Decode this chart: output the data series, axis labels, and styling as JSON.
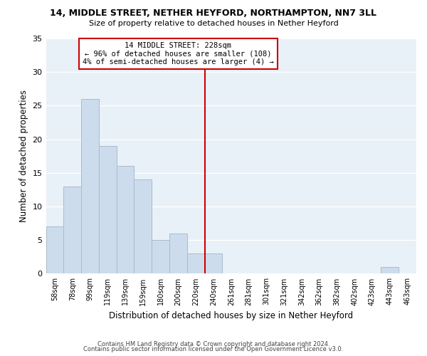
{
  "title1": "14, MIDDLE STREET, NETHER HEYFORD, NORTHAMPTON, NN7 3LL",
  "title2": "Size of property relative to detached houses in Nether Heyford",
  "xlabel": "Distribution of detached houses by size in Nether Heyford",
  "ylabel": "Number of detached properties",
  "bin_labels": [
    "58sqm",
    "78sqm",
    "99sqm",
    "119sqm",
    "139sqm",
    "159sqm",
    "180sqm",
    "200sqm",
    "220sqm",
    "240sqm",
    "261sqm",
    "281sqm",
    "301sqm",
    "321sqm",
    "342sqm",
    "362sqm",
    "382sqm",
    "402sqm",
    "423sqm",
    "443sqm",
    "463sqm"
  ],
  "bar_heights": [
    7,
    13,
    26,
    19,
    16,
    14,
    5,
    6,
    3,
    3,
    0,
    0,
    0,
    0,
    0,
    0,
    0,
    0,
    0,
    1,
    0
  ],
  "bar_color": "#ccdcec",
  "bar_edge_color": "#aabbcc",
  "property_line_label": "14 MIDDLE STREET: 228sqm",
  "annotation_line1": "← 96% of detached houses are smaller (108)",
  "annotation_line2": "4% of semi-detached houses are larger (4) →",
  "annotation_box_color": "#ffffff",
  "annotation_box_edge": "#cc0000",
  "line_color": "#cc0000",
  "ylim": [
    0,
    35
  ],
  "yticks": [
    0,
    5,
    10,
    15,
    20,
    25,
    30,
    35
  ],
  "footer1": "Contains HM Land Registry data © Crown copyright and database right 2024.",
  "footer2": "Contains public sector information licensed under the Open Government Licence v3.0.",
  "bg_color": "#ffffff",
  "plot_bg_color": "#e8f0f8"
}
